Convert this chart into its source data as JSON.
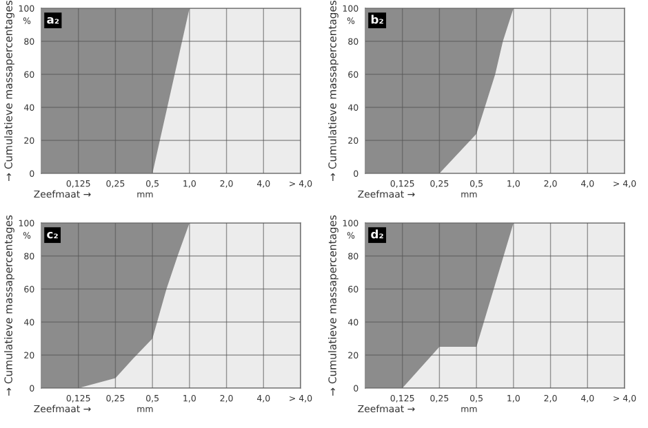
{
  "chart_data": [
    {
      "type": "area",
      "title": "a₂",
      "xlabel": "Zeefmaat →",
      "ylabel": "→ Cumulatieve massapercentages",
      "annotations": [
        "mm",
        "%"
      ],
      "log": "x",
      "xlim": [
        0.0625,
        8
      ],
      "xticks": [
        {
          "value": 0.125,
          "label": "0,125"
        },
        {
          "value": 0.25,
          "label": "0,25"
        },
        {
          "value": 0.5,
          "label": "0,5"
        },
        {
          "value": 1,
          "label": "1,0"
        },
        {
          "value": 2,
          "label": "2,0"
        },
        {
          "value": 4,
          "label": "4,0"
        },
        {
          "value": 8,
          "label": "> 4,0"
        }
      ],
      "ylim": [
        0,
        100
      ],
      "yticks": [
        0,
        20,
        40,
        60,
        80,
        100
      ],
      "grid": true,
      "series": [
        {
          "color": "#ececec",
          "x": [
            0.0625,
            0.5,
            1,
            8
          ],
          "values": [
            0,
            0,
            100,
            100
          ]
        }
      ]
    },
    {
      "type": "area",
      "title": "b₂",
      "xlabel": "Zeefmaat →",
      "ylabel": "→ Cumulatieve massapercentages",
      "annotations": [
        "mm",
        "%"
      ],
      "log": "x",
      "xlim": [
        0.0625,
        8
      ],
      "xticks": [
        {
          "value": 0.125,
          "label": "0,125"
        },
        {
          "value": 0.25,
          "label": "0,25"
        },
        {
          "value": 0.5,
          "label": "0,5"
        },
        {
          "value": 1,
          "label": "1,0"
        },
        {
          "value": 2,
          "label": "2,0"
        },
        {
          "value": 4,
          "label": "4,0"
        },
        {
          "value": 8,
          "label": "> 4,0"
        }
      ],
      "ylim": [
        0,
        100
      ],
      "yticks": [
        0,
        20,
        40,
        60,
        80,
        100
      ],
      "grid": true,
      "series": [
        {
          "color": "#ececec",
          "x": [
            0.0625,
            0.25,
            0.5,
            0.71,
            0.82,
            1,
            8
          ],
          "values": [
            0,
            0,
            24,
            60,
            80,
            100,
            100
          ]
        }
      ]
    },
    {
      "type": "area",
      "title": "c₂",
      "xlabel": "Zeefmaat →",
      "ylabel": "→ Cumulatieve massapercentages",
      "annotations": [
        "mm",
        "%"
      ],
      "log": "x",
      "xlim": [
        0.0625,
        8
      ],
      "xticks": [
        {
          "value": 0.125,
          "label": "0,125"
        },
        {
          "value": 0.25,
          "label": "0,25"
        },
        {
          "value": 0.5,
          "label": "0,5"
        },
        {
          "value": 1,
          "label": "1,0"
        },
        {
          "value": 2,
          "label": "2,0"
        },
        {
          "value": 4,
          "label": "4,0"
        },
        {
          "value": 8,
          "label": "> 4,0"
        }
      ],
      "ylim": [
        0,
        100
      ],
      "yticks": [
        0,
        20,
        40,
        60,
        80,
        100
      ],
      "grid": true,
      "series": [
        {
          "color": "#ececec",
          "x": [
            0.0625,
            0.125,
            0.25,
            0.35,
            0.5,
            0.65,
            0.8,
            1,
            8
          ],
          "values": [
            0,
            0,
            6,
            18,
            30,
            60,
            80,
            100,
            100
          ]
        }
      ]
    },
    {
      "type": "area",
      "title": "d₂",
      "xlabel": "Zeefmaat →",
      "ylabel": "→ Cumulatieve massapercentages",
      "annotations": [
        "mm",
        "%"
      ],
      "log": "x",
      "xlim": [
        0.0625,
        8
      ],
      "xticks": [
        {
          "value": 0.125,
          "label": "0,125"
        },
        {
          "value": 0.25,
          "label": "0,25"
        },
        {
          "value": 0.5,
          "label": "0,5"
        },
        {
          "value": 1,
          "label": "1,0"
        },
        {
          "value": 2,
          "label": "2,0"
        },
        {
          "value": 4,
          "label": "4,0"
        },
        {
          "value": 8,
          "label": "> 4,0"
        }
      ],
      "ylim": [
        0,
        100
      ],
      "yticks": [
        0,
        20,
        40,
        60,
        80,
        100
      ],
      "grid": true,
      "series": [
        {
          "color": "#ececec",
          "x": [
            0.0625,
            0.125,
            0.25,
            0.5,
            1,
            8
          ],
          "values": [
            0,
            0,
            25,
            25,
            100,
            100
          ]
        }
      ]
    }
  ]
}
